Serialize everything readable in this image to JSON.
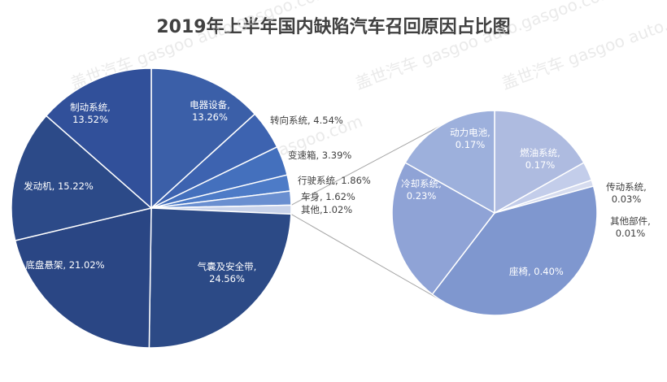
{
  "chart_data": {
    "type": "pie",
    "title": "2019年上半年国内缺陷汽车召回原因占比图",
    "unit": "%",
    "main_pie": {
      "slices": [
        {
          "label": "电器设备",
          "value": 13.26,
          "value_text": "13.26%",
          "color": "#3b5fa8"
        },
        {
          "label": "转向系统",
          "value": 4.54,
          "value_text": "4.54%",
          "color": "#3d63b0"
        },
        {
          "label": "变速箱",
          "value": 3.39,
          "value_text": "3.39%",
          "color": "#4470bd"
        },
        {
          "label": "行驶系统",
          "value": 1.86,
          "value_text": "1.86%",
          "color": "#4d7bc7"
        },
        {
          "label": "车身",
          "value": 1.62,
          "value_text": "1.62%",
          "color": "#6a8fd0"
        },
        {
          "label": "其他",
          "value": 1.02,
          "value_text": "1.02%",
          "color": "#c9d3ea"
        },
        {
          "label": "气囊及安全带",
          "value": 24.56,
          "value_text": "24.56%",
          "color": "#2c4a86"
        },
        {
          "label": "底盘悬架",
          "value": 21.02,
          "value_text": "21.02%",
          "color": "#2a4684"
        },
        {
          "label": "发动机",
          "value": 15.22,
          "value_text": "15.22%",
          "color": "#2c4a88"
        },
        {
          "label": "制动系统",
          "value": 13.52,
          "value_text": "13.52%",
          "color": "#31509a"
        }
      ]
    },
    "sub_pie": {
      "slices": [
        {
          "label": "燃油系统",
          "value": 0.17,
          "value_text": "0.17%",
          "color": "#aebbe0"
        },
        {
          "label": "传动系统",
          "value": 0.03,
          "value_text": "0.03%",
          "color": "#c3cdea"
        },
        {
          "label": "其他部件",
          "value": 0.01,
          "value_text": "0.01%",
          "color": "#d6dcef"
        },
        {
          "label": "座椅",
          "value": 0.4,
          "value_text": "0.40%",
          "color": "#7f97cf"
        },
        {
          "label": "冷却系统",
          "value": 0.23,
          "value_text": "0.23%",
          "color": "#8fa3d6"
        },
        {
          "label": "动力电池",
          "value": 0.17,
          "value_text": "0.17%",
          "color": "#9db0dc"
        }
      ]
    },
    "watermark": "盖世汽车 gasgoo auto.gasgoo.com"
  }
}
